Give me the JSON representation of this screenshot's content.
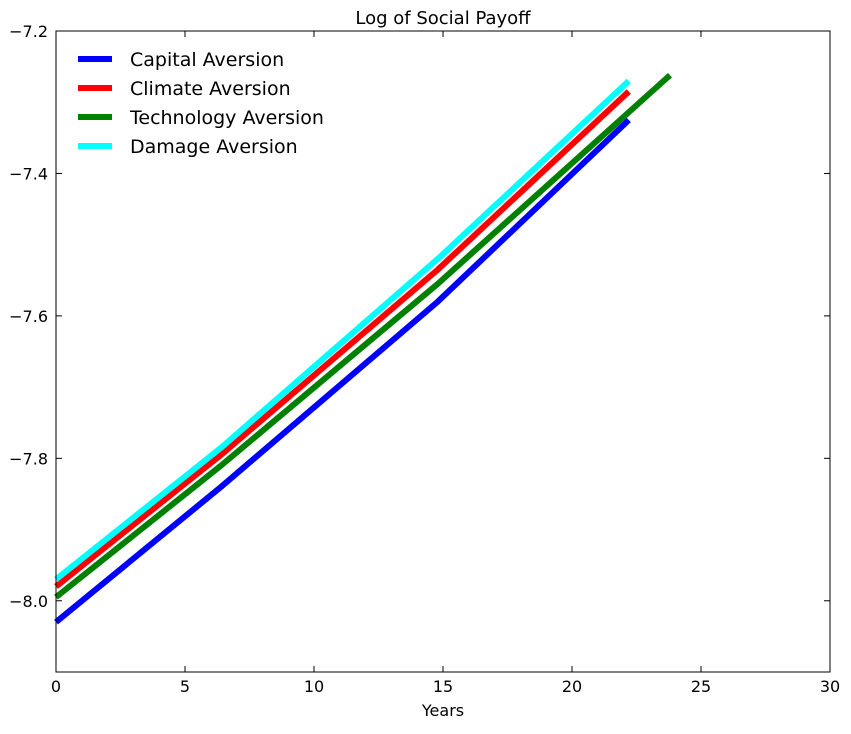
{
  "chart_data": {
    "type": "line",
    "title": "Log of Social Payoff",
    "xlabel": "Years",
    "ylabel": "",
    "xlim": [
      0,
      30
    ],
    "ylim": [
      -8.1,
      -7.2
    ],
    "x_ticks": [
      0,
      5,
      10,
      15,
      20,
      25,
      30
    ],
    "y_ticks": [
      -7.2,
      -7.4,
      -7.6,
      -7.8,
      -8.0
    ],
    "x_tick_labels": [
      "0",
      "5",
      "10",
      "15",
      "20",
      "25",
      "30"
    ],
    "y_tick_labels": [
      "−7.2",
      "−7.4",
      "−7.6",
      "−7.8",
      "−8.0"
    ],
    "grid": false,
    "legend_position": "top-left",
    "series": [
      {
        "name": "Capital Aversion",
        "color": "#0000ff",
        "x": [
          0,
          6.4,
          14.8,
          22.2
        ],
        "y": [
          -8.03,
          -7.84,
          -7.58,
          -7.325
        ]
      },
      {
        "name": "Climate Aversion",
        "color": "#ff0000",
        "x": [
          0,
          6.4,
          14.8,
          22.2
        ],
        "y": [
          -7.98,
          -7.795,
          -7.535,
          -7.285
        ]
      },
      {
        "name": "Technology Aversion",
        "color": "#008000",
        "x": [
          0,
          6.4,
          14.8,
          23.8
        ],
        "y": [
          -7.995,
          -7.81,
          -7.555,
          -7.262
        ]
      },
      {
        "name": "Damage Aversion",
        "color": "#00ffff",
        "x": [
          0,
          6.4,
          14.8,
          22.2
        ],
        "y": [
          -7.97,
          -7.785,
          -7.52,
          -7.27
        ]
      }
    ]
  }
}
